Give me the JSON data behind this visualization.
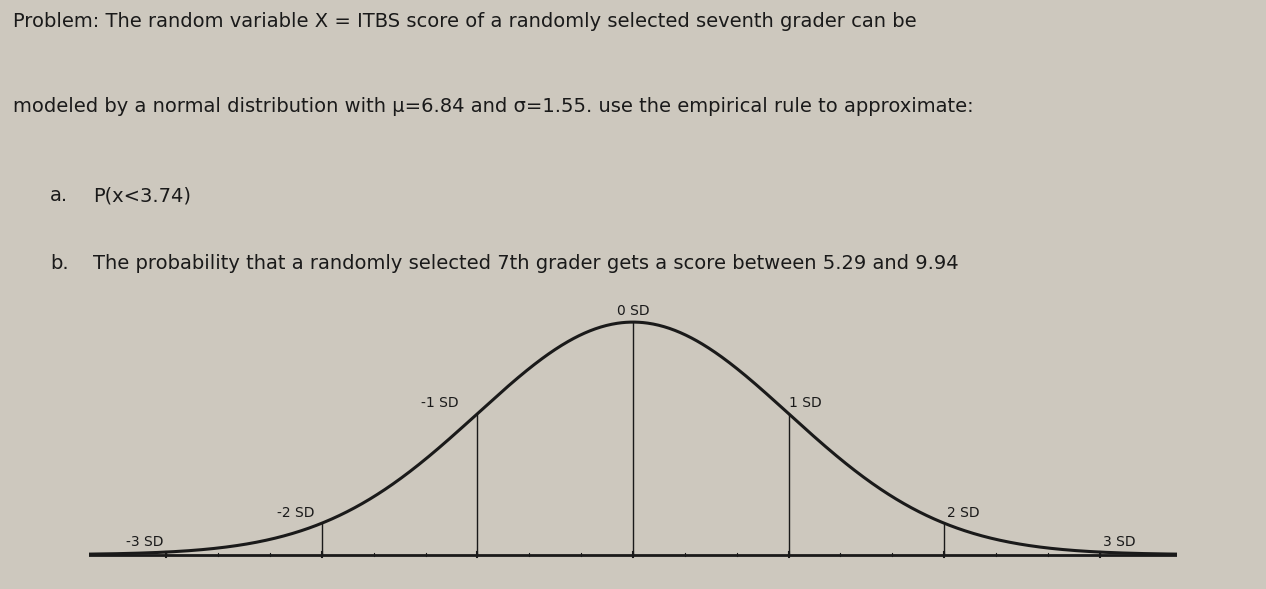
{
  "title_line1": "Problem: The random variable X = ITBS score of a randomly selected seventh grader can be",
  "title_line2": "modeled by a normal distribution with μ=6.84 and σ=1.55. use the empirical rule to approximate:",
  "item_a_label": "a.",
  "item_a_text": "P(x<3.74)",
  "item_b_label": "b.",
  "item_b_text": "The probability that a randomly selected 7th grader gets a score between 5.29 and 9.94",
  "mu": 6.84,
  "sigma": 1.55,
  "sd_labels": [
    "-3 SD",
    "-2 SD",
    "-1 SD",
    "0 SD",
    "1 SD",
    "2 SD",
    "3 SD"
  ],
  "sd_positions": [
    -3,
    -2,
    -1,
    0,
    1,
    2,
    3
  ],
  "curve_color": "#1a1a1a",
  "background_color": "#cdc8be",
  "text_color": "#1a1a1a",
  "axis_color": "#1a1a1a",
  "label_fontsize": 10,
  "text_fontsize": 14,
  "item_fontsize": 14
}
